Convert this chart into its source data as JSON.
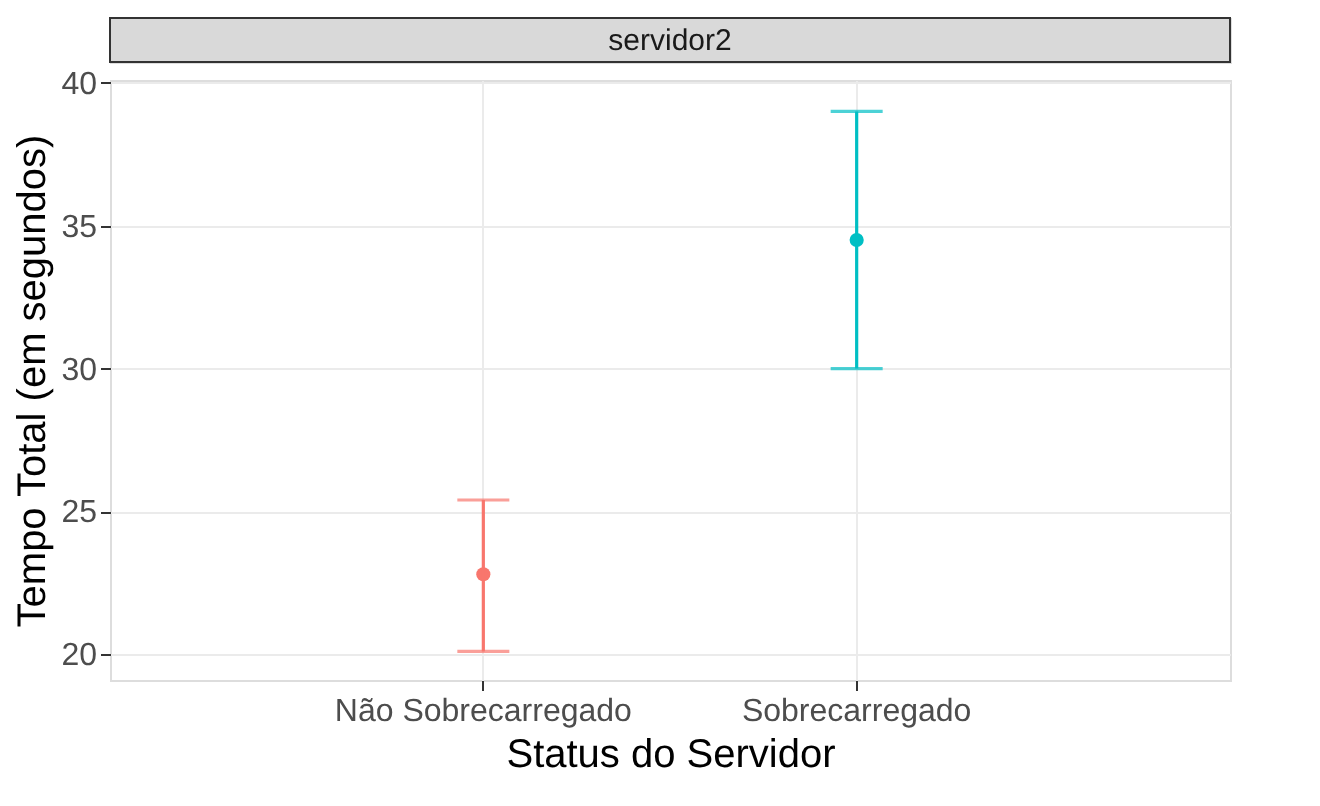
{
  "chart_data": {
    "type": "scatter",
    "title": "servidor2",
    "xlabel": "Status do Servidor",
    "ylabel": "Tempo Total (em segundos)",
    "categories": [
      "Não Sobrecarregado",
      "Sobrecarregado"
    ],
    "values": [
      22.8,
      34.5
    ],
    "colors": [
      "#f8766d",
      "#00bfc4"
    ],
    "errors": [
      [
        20.1,
        25.4
      ],
      [
        30.0,
        39.0
      ]
    ],
    "ylim": [
      19.1,
      40.1
    ],
    "yticks": [
      20,
      25,
      30,
      35,
      40
    ],
    "grid": true,
    "marker": "circle",
    "legend": false
  }
}
